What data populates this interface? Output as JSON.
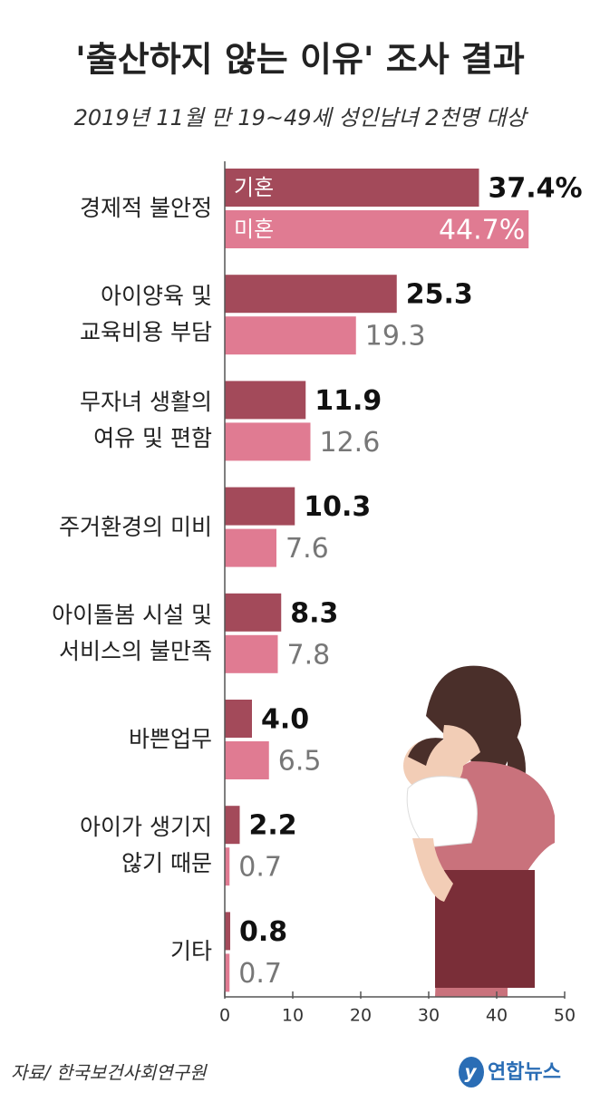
{
  "chart_data": {
    "type": "bar",
    "orientation": "horizontal",
    "title": "'출산하지 않는 이유' 조사 결과",
    "subtitle": "2019년 11월 만 19~49세 성인남녀 2천명 대상",
    "source": "자료/ 한국보건사회연구원",
    "credit": "연합뉴스",
    "categories": [
      "경제적 불안정",
      "아이양육 및\n교육비용 부담",
      "무자녀 생활의\n여유 및 편함",
      "주거환경의 미비",
      "아이돌봄 시설 및\n서비스의 불만족",
      "바쁜업무",
      "아이가 생기지\n않기 때문",
      "기타"
    ],
    "series": [
      {
        "name": "기혼",
        "color": "#a34a5a",
        "values": [
          37.4,
          25.3,
          11.9,
          10.3,
          8.3,
          4.0,
          2.2,
          0.8
        ],
        "value_labels": [
          "37.4%",
          "25.3",
          "11.9",
          "10.3",
          "8.3",
          "4.0",
          "2.2",
          "0.8"
        ]
      },
      {
        "name": "미혼",
        "color": "#e07b92",
        "values": [
          44.7,
          19.3,
          12.6,
          7.6,
          7.8,
          6.5,
          0.7,
          0.7
        ],
        "value_labels": [
          "44.7%",
          "19.3",
          "12.6",
          "7.6",
          "7.8",
          "6.5",
          "0.7",
          "0.7"
        ]
      }
    ],
    "xlim": [
      0,
      50
    ],
    "xticks": [
      0,
      10,
      20,
      30,
      40,
      50
    ]
  }
}
